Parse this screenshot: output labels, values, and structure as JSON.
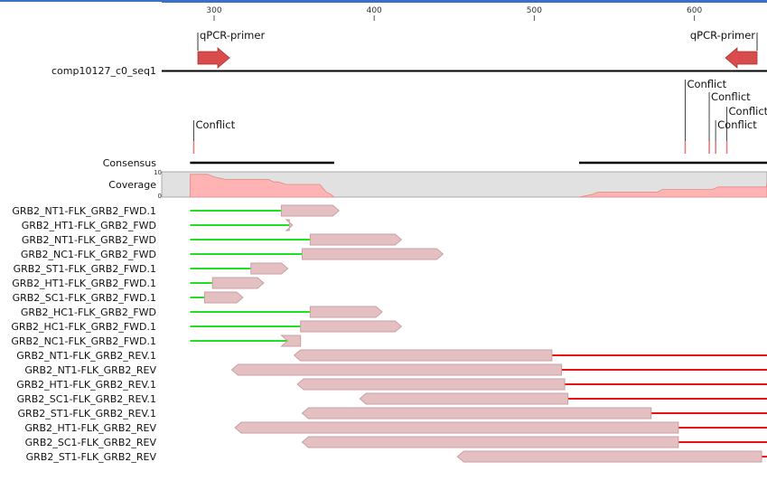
{
  "ruler": {
    "ticks": [
      300,
      400,
      500,
      600
    ]
  },
  "reference": {
    "name": "comp10127_c0_seq1",
    "primers": [
      {
        "label": "qPCR-primer",
        "direction": "forward",
        "start": 285,
        "end": 295
      },
      {
        "label": "qPCR-primer",
        "direction": "reverse",
        "start": 637,
        "end": 647
      }
    ]
  },
  "conflicts": [
    {
      "label": "Conflict",
      "pos": 287
    },
    {
      "label": "Conflict",
      "pos": 594
    },
    {
      "label": "Conflict",
      "pos": 609
    },
    {
      "label": "Conflict",
      "pos": 620
    },
    {
      "label": "Conflict",
      "pos": 613
    }
  ],
  "consensus": {
    "label": "Consensus",
    "segments": [
      [
        285,
        375
      ],
      [
        528,
        648
      ]
    ]
  },
  "coverage": {
    "label": "Coverage",
    "max_label": "10",
    "min_label": "0",
    "max": 10,
    "profile": [
      [
        285,
        9
      ],
      [
        296,
        9
      ],
      [
        300,
        8
      ],
      [
        307,
        7
      ],
      [
        334,
        7
      ],
      [
        337,
        6
      ],
      [
        340,
        6
      ],
      [
        345,
        5
      ],
      [
        366,
        5
      ],
      [
        370,
        2
      ],
      [
        373,
        1
      ],
      [
        375,
        0
      ],
      [
        528,
        0
      ],
      [
        536,
        1
      ],
      [
        540,
        2
      ],
      [
        577,
        2
      ],
      [
        580,
        3
      ],
      [
        611,
        3
      ],
      [
        615,
        4
      ],
      [
        645,
        4
      ],
      [
        648,
        6
      ]
    ]
  },
  "reads": [
    {
      "name": "GRB2_NT1-FLK_GRB2_FWD.1",
      "direction": "forward",
      "start": 285,
      "end": 378,
      "trim_end": 342
    },
    {
      "name": "GRB2_HT1-FLK_GRB2_FWD",
      "direction": "forward",
      "start": 285,
      "end": 349,
      "trim_end": 347
    },
    {
      "name": "GRB2_NT1-FLK_GRB2_FWD",
      "direction": "forward",
      "start": 285,
      "end": 417,
      "trim_end": 360
    },
    {
      "name": "GRB2_NC1-FLK_GRB2_FWD",
      "direction": "forward",
      "start": 285,
      "end": 443,
      "trim_end": 355
    },
    {
      "name": "GRB2_ST1-FLK_GRB2_FWD.1",
      "direction": "forward",
      "start": 285,
      "end": 346,
      "trim_end": 323
    },
    {
      "name": "GRB2_HT1-FLK_GRB2_FWD.1",
      "direction": "forward",
      "start": 285,
      "end": 331,
      "trim_end": 299
    },
    {
      "name": "GRB2_SC1-FLK_GRB2_FWD.1",
      "direction": "forward",
      "start": 285,
      "end": 318,
      "trim_end": 294
    },
    {
      "name": "GRB2_HC1-FLK_GRB2_FWD",
      "direction": "forward",
      "start": 285,
      "end": 405,
      "trim_end": 360
    },
    {
      "name": "GRB2_HC1-FLK_GRB2_FWD.1",
      "direction": "forward",
      "start": 285,
      "end": 417,
      "trim_end": 354
    },
    {
      "name": "GRB2_NC1-FLK_GRB2_FWD.1",
      "direction": "forward",
      "start": 285,
      "end": 346,
      "trim_end": 354
    },
    {
      "name": "GRB2_NT1-FLK_GRB2_REV.1",
      "direction": "reverse",
      "start": 350,
      "end": 648,
      "trim_start": 511
    },
    {
      "name": "GRB2_NT1-FLK_GRB2_REV",
      "direction": "reverse",
      "start": 311,
      "end": 648,
      "trim_start": 517
    },
    {
      "name": "GRB2_HT1-FLK_GRB2_REV.1",
      "direction": "reverse",
      "start": 352,
      "end": 648,
      "trim_start": 519
    },
    {
      "name": "GRB2_SC1-FLK_GRB2_REV.1",
      "direction": "reverse",
      "start": 391,
      "end": 648,
      "trim_start": 521
    },
    {
      "name": "GRB2_ST1-FLK_GRB2_REV.1",
      "direction": "reverse",
      "start": 355,
      "end": 648,
      "trim_start": 573
    },
    {
      "name": "GRB2_HT1-FLK_GRB2_REV",
      "direction": "reverse",
      "start": 313,
      "end": 648,
      "trim_start": 590
    },
    {
      "name": "GRB2_SC1-FLK_GRB2_REV",
      "direction": "reverse",
      "start": 355,
      "end": 648,
      "trim_start": 590
    },
    {
      "name": "GRB2_ST1-FLK_GRB2_REV",
      "direction": "reverse",
      "start": 452,
      "end": 648,
      "trim_start": 642
    }
  ],
  "colors": {
    "forward_trim": "#22e022",
    "reverse_trim": "#ee1111",
    "read_fill": "#e5c0c2",
    "read_stroke": "#c8a0a3",
    "primer": "#d84c4c",
    "coverage_fill": "#ffb3b3",
    "coverage_bg": "#e1e1e1"
  }
}
